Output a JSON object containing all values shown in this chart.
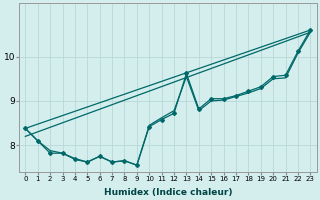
{
  "xlabel": "Humidex (Indice chaleur)",
  "background_color": "#d4eeee",
  "line_color": "#006868",
  "grid_color": "#b8d8d8",
  "xlim": [
    -0.5,
    23.5
  ],
  "ylim": [
    7.4,
    11.2
  ],
  "yticks": [
    8,
    9,
    10
  ],
  "xticks": [
    0,
    1,
    2,
    3,
    4,
    5,
    6,
    7,
    8,
    9,
    10,
    11,
    12,
    13,
    14,
    15,
    16,
    17,
    18,
    19,
    20,
    21,
    22,
    23
  ],
  "main_x": [
    0,
    1,
    2,
    3,
    4,
    5,
    6,
    7,
    8,
    9,
    10,
    11,
    12,
    13,
    14,
    15,
    16,
    17,
    18,
    19,
    20,
    21,
    22,
    23
  ],
  "main_y": [
    8.38,
    8.1,
    7.82,
    7.82,
    7.68,
    7.62,
    7.75,
    7.62,
    7.65,
    7.55,
    8.42,
    8.58,
    8.72,
    9.62,
    8.82,
    9.05,
    9.05,
    9.12,
    9.22,
    9.32,
    9.55,
    9.58,
    10.12,
    10.6
  ],
  "smooth_y": [
    8.38,
    8.1,
    7.88,
    7.82,
    7.7,
    7.62,
    7.75,
    7.62,
    7.65,
    7.55,
    8.45,
    8.62,
    8.78,
    9.55,
    8.78,
    9.0,
    9.02,
    9.1,
    9.18,
    9.28,
    9.5,
    9.52,
    10.08,
    10.55
  ],
  "trend1_x": [
    0,
    23
  ],
  "trend1_y": [
    8.38,
    10.6
  ],
  "trend2_x": [
    0,
    23
  ],
  "trend2_y": [
    8.2,
    10.55
  ]
}
